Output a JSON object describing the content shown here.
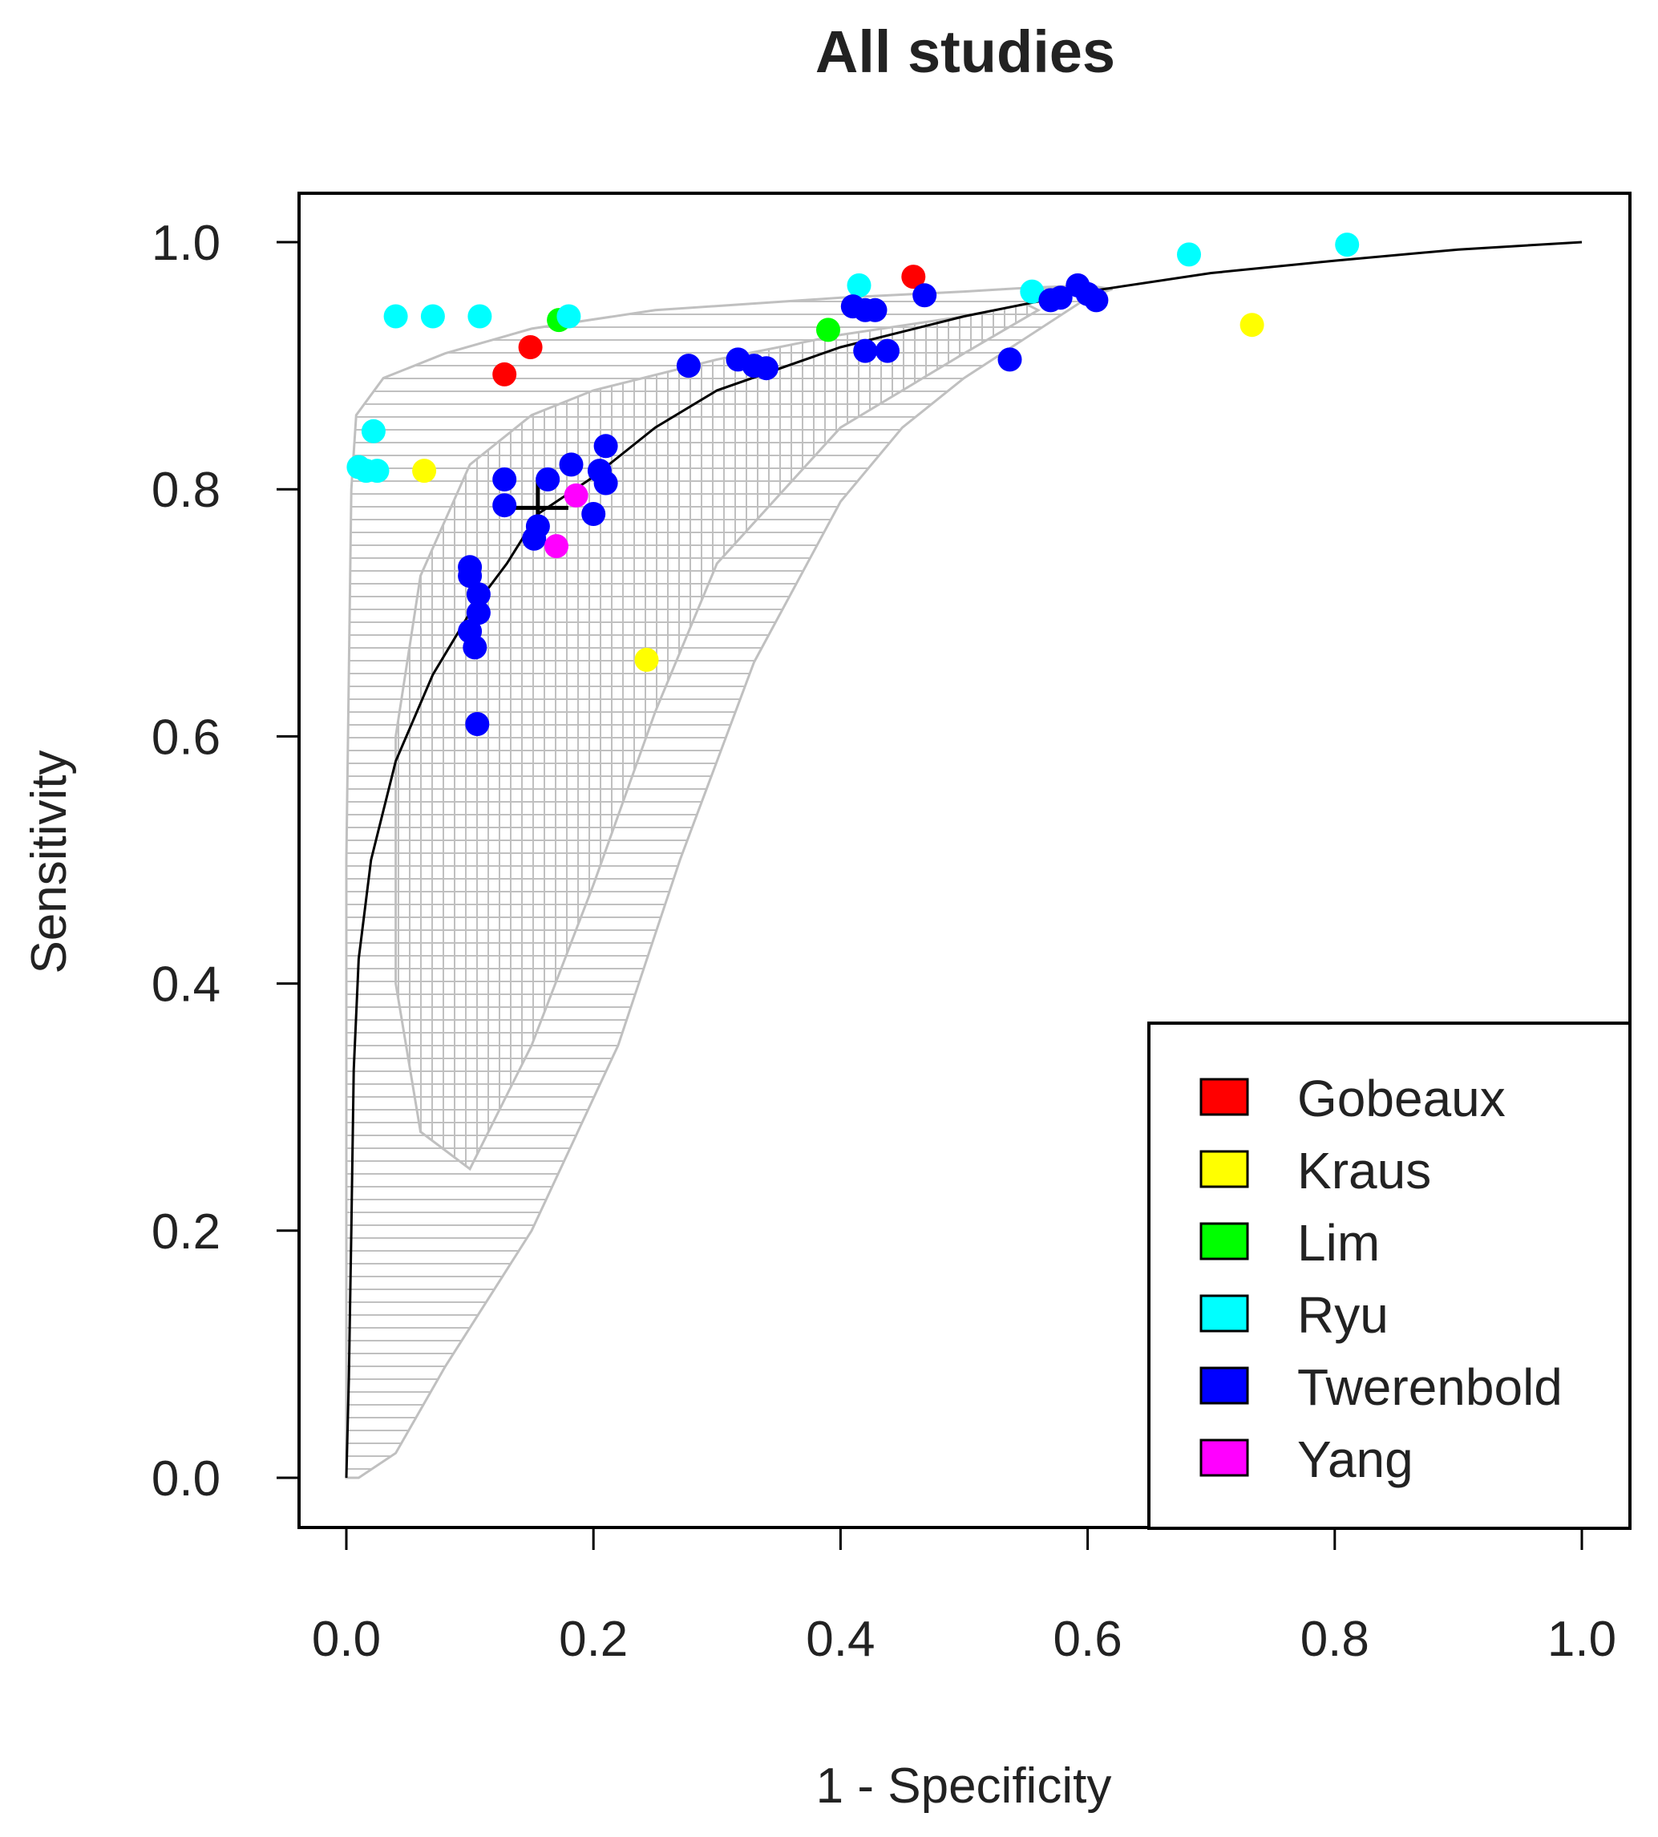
{
  "chart_data": {
    "type": "scatter",
    "title": "All studies",
    "xlabel": "1 - Specificity",
    "ylabel": "Sensitivity",
    "xlim": [
      0,
      1
    ],
    "ylim": [
      0,
      1
    ],
    "xticks": [
      "0.0",
      "0.2",
      "0.4",
      "0.6",
      "0.8",
      "1.0"
    ],
    "yticks": [
      "0.0",
      "0.2",
      "0.4",
      "0.6",
      "0.8",
      "1.0"
    ],
    "legend_position": "bottom-right",
    "summary_point": {
      "x": 0.155,
      "y": 0.785,
      "marker": "+"
    },
    "sroc_curve": [
      [
        0.0,
        0.0
      ],
      [
        0.002,
        0.08
      ],
      [
        0.004,
        0.2
      ],
      [
        0.006,
        0.33
      ],
      [
        0.01,
        0.42
      ],
      [
        0.02,
        0.5
      ],
      [
        0.04,
        0.58
      ],
      [
        0.07,
        0.65
      ],
      [
        0.1,
        0.7
      ],
      [
        0.13,
        0.74
      ],
      [
        0.155,
        0.78
      ],
      [
        0.2,
        0.81
      ],
      [
        0.25,
        0.85
      ],
      [
        0.3,
        0.88
      ],
      [
        0.4,
        0.915
      ],
      [
        0.5,
        0.94
      ],
      [
        0.6,
        0.96
      ],
      [
        0.7,
        0.975
      ],
      [
        0.8,
        0.985
      ],
      [
        0.9,
        0.994
      ],
      [
        1.0,
        1.0
      ]
    ],
    "prediction_region": [
      [
        0.0,
        0.0
      ],
      [
        0.0,
        0.25
      ],
      [
        0.0,
        0.5
      ],
      [
        0.002,
        0.65
      ],
      [
        0.004,
        0.8
      ],
      [
        0.008,
        0.86
      ],
      [
        0.03,
        0.89
      ],
      [
        0.08,
        0.91
      ],
      [
        0.15,
        0.93
      ],
      [
        0.25,
        0.945
      ],
      [
        0.4,
        0.955
      ],
      [
        0.5,
        0.96
      ],
      [
        0.55,
        0.963
      ],
      [
        0.6,
        0.965
      ],
      [
        0.62,
        0.962
      ],
      [
        0.6,
        0.955
      ],
      [
        0.5,
        0.89
      ],
      [
        0.45,
        0.85
      ],
      [
        0.4,
        0.79
      ],
      [
        0.33,
        0.66
      ],
      [
        0.27,
        0.5
      ],
      [
        0.22,
        0.35
      ],
      [
        0.15,
        0.2
      ],
      [
        0.08,
        0.09
      ],
      [
        0.04,
        0.02
      ],
      [
        0.01,
        0.0
      ]
    ],
    "confidence_region": [
      [
        0.04,
        0.6
      ],
      [
        0.06,
        0.73
      ],
      [
        0.1,
        0.82
      ],
      [
        0.15,
        0.86
      ],
      [
        0.2,
        0.88
      ],
      [
        0.3,
        0.905
      ],
      [
        0.4,
        0.925
      ],
      [
        0.5,
        0.94
      ],
      [
        0.55,
        0.95
      ],
      [
        0.56,
        0.945
      ],
      [
        0.5,
        0.91
      ],
      [
        0.4,
        0.85
      ],
      [
        0.3,
        0.74
      ],
      [
        0.25,
        0.62
      ],
      [
        0.2,
        0.48
      ],
      [
        0.15,
        0.35
      ],
      [
        0.1,
        0.25
      ],
      [
        0.06,
        0.28
      ],
      [
        0.04,
        0.4
      ]
    ],
    "series": [
      {
        "name": "Gobeaux",
        "color": "#ff0000",
        "points": [
          [
            0.128,
            0.893
          ],
          [
            0.149,
            0.915
          ],
          [
            0.459,
            0.972
          ]
        ]
      },
      {
        "name": "Kraus",
        "color": "#ffff00",
        "points": [
          [
            0.063,
            0.815
          ],
          [
            0.243,
            0.662
          ],
          [
            0.733,
            0.933
          ]
        ]
      },
      {
        "name": "Lim",
        "color": "#00ff00",
        "points": [
          [
            0.172,
            0.937
          ],
          [
            0.39,
            0.929
          ]
        ]
      },
      {
        "name": "Ryu",
        "color": "#00ffff",
        "points": [
          [
            0.04,
            0.94
          ],
          [
            0.07,
            0.94
          ],
          [
            0.108,
            0.94
          ],
          [
            0.18,
            0.94
          ],
          [
            0.415,
            0.965
          ],
          [
            0.555,
            0.96
          ],
          [
            0.682,
            0.99
          ],
          [
            0.81,
            0.998
          ],
          [
            0.022,
            0.847
          ],
          [
            0.01,
            0.818
          ],
          [
            0.016,
            0.815
          ],
          [
            0.025,
            0.815
          ]
        ]
      },
      {
        "name": "Twerenbold",
        "color": "#0000ff",
        "points": [
          [
            0.1,
            0.737
          ],
          [
            0.1,
            0.73
          ],
          [
            0.107,
            0.715
          ],
          [
            0.107,
            0.7
          ],
          [
            0.1,
            0.685
          ],
          [
            0.104,
            0.672
          ],
          [
            0.106,
            0.61
          ],
          [
            0.128,
            0.808
          ],
          [
            0.128,
            0.787
          ],
          [
            0.152,
            0.76
          ],
          [
            0.155,
            0.77
          ],
          [
            0.163,
            0.808
          ],
          [
            0.182,
            0.82
          ],
          [
            0.2,
            0.78
          ],
          [
            0.205,
            0.815
          ],
          [
            0.21,
            0.805
          ],
          [
            0.21,
            0.835
          ],
          [
            0.277,
            0.9
          ],
          [
            0.317,
            0.905
          ],
          [
            0.33,
            0.9
          ],
          [
            0.34,
            0.898
          ],
          [
            0.41,
            0.948
          ],
          [
            0.42,
            0.945
          ],
          [
            0.428,
            0.945
          ],
          [
            0.42,
            0.912
          ],
          [
            0.438,
            0.912
          ],
          [
            0.468,
            0.957
          ],
          [
            0.537,
            0.905
          ],
          [
            0.57,
            0.953
          ],
          [
            0.578,
            0.955
          ],
          [
            0.592,
            0.965
          ],
          [
            0.6,
            0.958
          ],
          [
            0.607,
            0.953
          ]
        ]
      },
      {
        "name": "Yang",
        "color": "#ff00ff",
        "points": [
          [
            0.186,
            0.795
          ],
          [
            0.17,
            0.754
          ]
        ]
      }
    ]
  }
}
